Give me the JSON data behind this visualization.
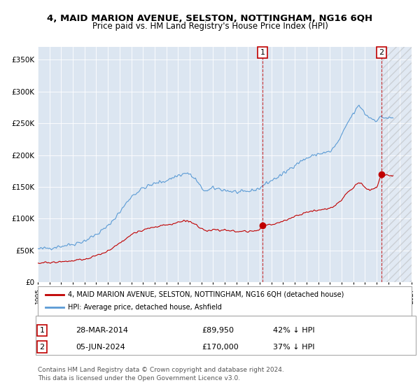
{
  "title": "4, MAID MARION AVENUE, SELSTON, NOTTINGHAM, NG16 6QH",
  "subtitle": "Price paid vs. HM Land Registry's House Price Index (HPI)",
  "legend_line1": "4, MAID MARION AVENUE, SELSTON, NOTTINGHAM, NG16 6QH (detached house)",
  "legend_line2": "HPI: Average price, detached house, Ashfield",
  "table": [
    {
      "num": "1",
      "date": "28-MAR-2014",
      "price": "£89,950",
      "hpi": "42% ↓ HPI"
    },
    {
      "num": "2",
      "date": "05-JUN-2024",
      "price": "£170,000",
      "hpi": "37% ↓ HPI"
    }
  ],
  "footnote1": "Contains HM Land Registry data © Crown copyright and database right 2024.",
  "footnote2": "This data is licensed under the Open Government Licence v3.0.",
  "hpi_color": "#5b9bd5",
  "price_color": "#c00000",
  "point1_date_num": 2014.24,
  "point1_price": 89950,
  "point2_date_num": 2024.43,
  "point2_price": 170000,
  "vline1": 2014.24,
  "vline2": 2024.43,
  "ylim": [
    0,
    370000
  ],
  "xlim_start": 1995.0,
  "xlim_end": 2027.0,
  "background_color": "#dce6f1",
  "plot_bg_color": "#dce6f1",
  "hatch_color": "#b8c9e0"
}
